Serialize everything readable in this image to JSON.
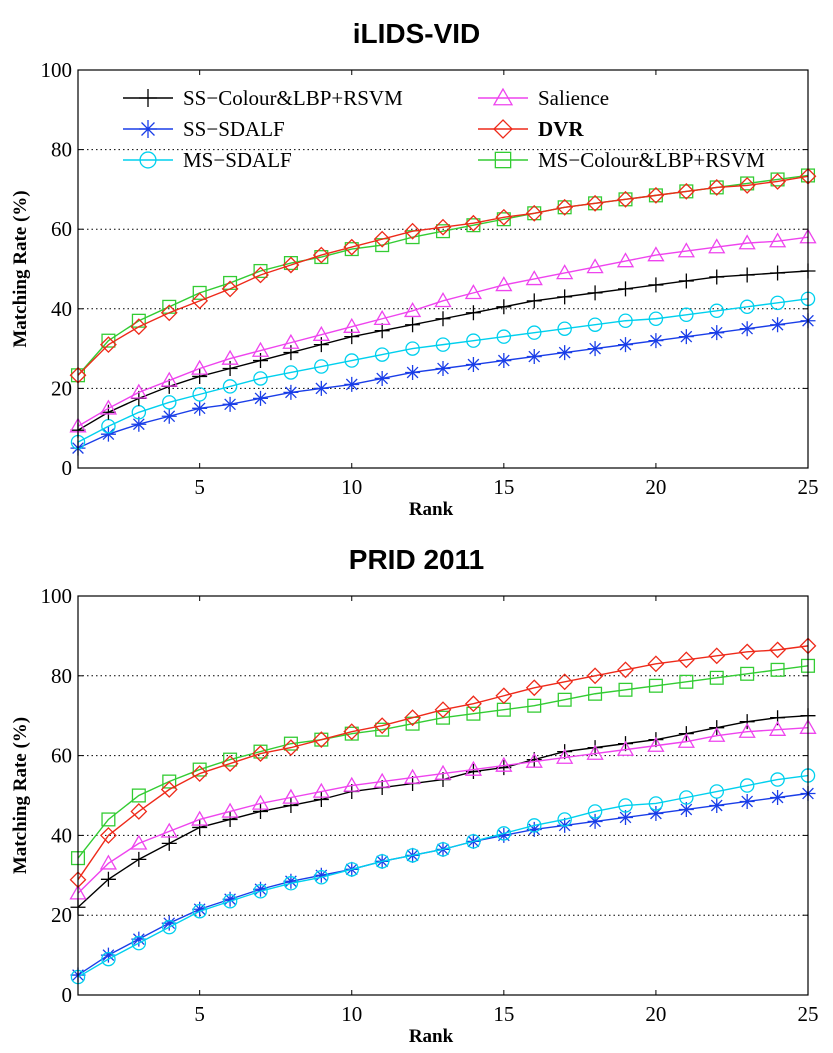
{
  "chart_data": [
    {
      "type": "line",
      "title": "iLIDS-VID",
      "xlabel": "Rank",
      "ylabel": "Matching Rate (%)",
      "xlim": [
        1,
        25
      ],
      "ylim": [
        0,
        100
      ],
      "xticks": [
        5,
        10,
        15,
        20,
        25
      ],
      "yticks": [
        0,
        20,
        40,
        60,
        80,
        100
      ],
      "grid": "horizontal dotted",
      "legend_position": "top-left",
      "legend_columns": 2,
      "x": [
        1,
        2,
        3,
        4,
        5,
        6,
        7,
        8,
        9,
        10,
        11,
        12,
        13,
        14,
        15,
        16,
        17,
        18,
        19,
        20,
        21,
        22,
        23,
        24,
        25
      ],
      "series": [
        {
          "name": "SS−Colour&LBP+RSVM",
          "color": "#000000",
          "marker": "plus",
          "values": [
            9.5,
            14,
            17.5,
            20.5,
            23,
            25,
            27,
            29,
            31,
            33,
            34.5,
            36,
            37.5,
            39,
            40.5,
            42,
            43,
            44,
            45,
            46,
            47,
            48,
            48.5,
            49,
            49.5
          ]
        },
        {
          "name": "Salience",
          "color": "#ee44ee",
          "marker": "triangle",
          "values": [
            10.5,
            15,
            19,
            22,
            25,
            27.5,
            29.5,
            31.5,
            33.5,
            35.5,
            37.5,
            39.5,
            42,
            44,
            46,
            47.5,
            49,
            50.5,
            52,
            53.5,
            54.5,
            55.5,
            56.5,
            57,
            58
          ]
        },
        {
          "name": "SS−SDALF",
          "color": "#1a3ee8",
          "marker": "asterisk",
          "values": [
            5,
            8.5,
            11,
            13,
            15,
            16,
            17.5,
            19,
            20,
            21,
            22.5,
            24,
            25,
            26,
            27,
            28,
            29,
            30,
            31,
            32,
            33,
            34,
            35,
            36,
            37
          ]
        },
        {
          "name": "DVR",
          "color": "#ee2a1a",
          "marker": "diamond",
          "values": [
            23.3,
            31,
            35.5,
            39,
            42,
            45,
            48.5,
            51,
            53.5,
            55.5,
            57.5,
            59.5,
            60.5,
            61.5,
            63,
            64,
            65.5,
            66.5,
            67.5,
            68.5,
            69.5,
            70.5,
            71,
            72,
            73.3
          ]
        },
        {
          "name": "MS−SDALF",
          "color": "#00d0ee",
          "marker": "circle",
          "values": [
            6.5,
            10.5,
            14,
            16.5,
            18.5,
            20.5,
            22.5,
            24,
            25.5,
            27,
            28.5,
            30,
            31,
            32,
            33,
            34,
            35,
            36,
            37,
            37.5,
            38.5,
            39.5,
            40.5,
            41.5,
            42.5
          ]
        },
        {
          "name": "MS−Colour&LBP+RSVM",
          "color": "#33cc33",
          "marker": "square",
          "values": [
            23.3,
            32,
            37,
            40.5,
            44,
            46.5,
            49.5,
            51.5,
            53,
            55,
            56,
            58,
            59.5,
            61,
            62.5,
            64,
            65.5,
            66.5,
            67.5,
            68.5,
            69.5,
            70.5,
            71.5,
            72.5,
            73.5
          ]
        }
      ]
    },
    {
      "type": "line",
      "title": "PRID 2011",
      "xlabel": "Rank",
      "ylabel": "Matching Rate (%)",
      "xlim": [
        1,
        25
      ],
      "ylim": [
        0,
        100
      ],
      "xticks": [
        5,
        10,
        15,
        20,
        25
      ],
      "yticks": [
        0,
        20,
        40,
        60,
        80,
        100
      ],
      "grid": "horizontal dotted",
      "legend_position": "none",
      "x": [
        1,
        2,
        3,
        4,
        5,
        6,
        7,
        8,
        9,
        10,
        11,
        12,
        13,
        14,
        15,
        16,
        17,
        18,
        19,
        20,
        21,
        22,
        23,
        24,
        25
      ],
      "series": [
        {
          "name": "SS−Colour&LBP+RSVM",
          "color": "#000000",
          "marker": "plus",
          "values": [
            22,
            29,
            34,
            38,
            42,
            44,
            46,
            47.5,
            49,
            51,
            52,
            53,
            54,
            56,
            57,
            59,
            61,
            62,
            63,
            64,
            65.5,
            67,
            68.5,
            69.5,
            70
          ]
        },
        {
          "name": "Salience",
          "color": "#ee44ee",
          "marker": "triangle",
          "values": [
            25.5,
            33,
            38,
            41,
            44,
            46,
            48,
            49.5,
            51,
            52.5,
            53.5,
            54.5,
            55.5,
            56.5,
            57.5,
            58.5,
            59.5,
            60.5,
            61.5,
            62.5,
            63.5,
            65,
            66,
            66.5,
            67
          ]
        },
        {
          "name": "SS−SDALF",
          "color": "#1a3ee8",
          "marker": "asterisk",
          "values": [
            5,
            10,
            14,
            18,
            21.5,
            24,
            26.5,
            28.5,
            30,
            31.5,
            33.5,
            35,
            36.5,
            38.5,
            40,
            41.5,
            42.5,
            43.5,
            44.5,
            45.5,
            46.5,
            47.5,
            48.5,
            49.5,
            50.5
          ]
        },
        {
          "name": "DVR",
          "color": "#ee2a1a",
          "marker": "diamond",
          "values": [
            28.9,
            40,
            46,
            51.5,
            55.5,
            58,
            60.5,
            62,
            64,
            66,
            67.5,
            69.5,
            71.5,
            73,
            75,
            77,
            78.5,
            80,
            81.5,
            83,
            84,
            85,
            86,
            86.5,
            87.5
          ]
        },
        {
          "name": "MS−SDALF",
          "color": "#00d0ee",
          "marker": "circle",
          "values": [
            4.5,
            9,
            13,
            17,
            21,
            23.5,
            26,
            28,
            29.5,
            31.5,
            33.5,
            35,
            36.5,
            38.5,
            40.5,
            42.5,
            44,
            46,
            47.5,
            48,
            49.5,
            51,
            52.5,
            54,
            55
          ]
        },
        {
          "name": "MS−Colour&LBP+RSVM",
          "color": "#33cc33",
          "marker": "square",
          "values": [
            34.3,
            44,
            50,
            53.5,
            56.5,
            59,
            61,
            63,
            64,
            65.5,
            66.5,
            68,
            69.5,
            70.5,
            71.5,
            72.5,
            74,
            75.5,
            76.5,
            77.5,
            78.5,
            79.5,
            80.5,
            81.5,
            82.5
          ]
        }
      ]
    }
  ]
}
